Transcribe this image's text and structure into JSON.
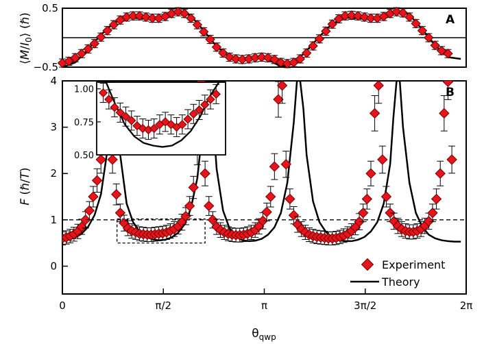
{
  "chart_data": [
    {
      "panel": "A",
      "type": "line",
      "ylabel_parts": [
        "⟨",
        "M",
        "/",
        "I",
        "0",
        "⟩ (ℏ)"
      ],
      "ylim": [
        -0.5,
        0.5
      ],
      "xlim": [
        0,
        6.283
      ],
      "y_ticks": [
        {
          "value": 0.5,
          "label": "0.5"
        },
        {
          "value": -0.5,
          "label": "−0.5"
        }
      ],
      "reference_line_y": 0,
      "series": [
        {
          "kind": "scatter",
          "color": "#e8141b",
          "x": [
            0.0,
            0.1,
            0.2,
            0.3,
            0.4,
            0.5,
            0.6,
            0.7,
            0.8,
            0.9,
            1.0,
            1.1,
            1.2,
            1.3,
            1.4,
            1.5,
            1.6,
            1.7,
            1.8,
            1.9,
            2.0,
            2.1,
            2.2,
            2.3,
            2.4,
            2.5,
            2.6,
            2.7,
            2.8,
            2.9,
            3.0,
            3.1,
            3.2,
            3.3,
            3.4,
            3.5,
            3.6,
            3.7,
            3.8,
            3.9,
            4.0,
            4.1,
            4.2,
            4.3,
            4.4,
            4.5,
            4.6,
            4.7,
            4.8,
            4.9,
            5.0,
            5.1,
            5.2,
            5.3,
            5.4,
            5.5,
            5.6,
            5.7,
            5.8,
            5.9,
            6.0
          ],
          "y": [
            -0.43,
            -0.4,
            -0.34,
            -0.27,
            -0.19,
            -0.1,
            0.01,
            0.12,
            0.22,
            0.3,
            0.35,
            0.37,
            0.37,
            0.35,
            0.33,
            0.33,
            0.36,
            0.41,
            0.44,
            0.41,
            0.33,
            0.22,
            0.1,
            -0.03,
            -0.16,
            -0.26,
            -0.33,
            -0.36,
            -0.37,
            -0.36,
            -0.34,
            -0.33,
            -0.34,
            -0.37,
            -0.42,
            -0.44,
            -0.42,
            -0.36,
            -0.26,
            -0.14,
            -0.02,
            0.11,
            0.23,
            0.32,
            0.37,
            0.38,
            0.37,
            0.35,
            0.33,
            0.33,
            0.36,
            0.41,
            0.44,
            0.42,
            0.35,
            0.24,
            0.12,
            0.0,
            -0.13,
            -0.22,
            -0.27
          ]
        },
        {
          "kind": "line",
          "color": "#000000",
          "x": [
            0.0,
            0.2,
            0.4,
            0.6,
            0.8,
            1.0,
            1.2,
            1.4,
            1.6,
            1.8,
            2.0,
            2.2,
            2.4,
            2.6,
            2.8,
            3.0,
            3.2,
            3.4,
            3.6,
            3.8,
            4.0,
            4.2,
            4.4,
            4.6,
            4.8,
            5.0,
            5.2,
            5.4,
            5.6,
            5.8,
            6.0,
            6.2
          ],
          "y": [
            -0.5,
            -0.42,
            -0.2,
            0.05,
            0.25,
            0.34,
            0.33,
            0.31,
            0.38,
            0.47,
            0.37,
            0.12,
            -0.15,
            -0.33,
            -0.35,
            -0.32,
            -0.37,
            -0.49,
            -0.44,
            -0.22,
            0.02,
            0.24,
            0.34,
            0.33,
            0.31,
            0.37,
            0.47,
            0.39,
            0.14,
            -0.13,
            -0.33,
            -0.36
          ]
        }
      ]
    },
    {
      "panel": "B",
      "type": "scatter",
      "ylabel_parts": [
        "F",
        " (ℏ/",
        "T",
        ")"
      ],
      "xlabel_main": "θ",
      "xlabel_sub": "qwp",
      "ylim": [
        -0.6,
        4
      ],
      "xlim": [
        0,
        6.283
      ],
      "y_ticks": [
        {
          "value": 0,
          "label": "0"
        },
        {
          "value": 1,
          "label": "1"
        },
        {
          "value": 2,
          "label": "2"
        },
        {
          "value": 3,
          "label": "3"
        },
        {
          "value": 4,
          "label": "4"
        }
      ],
      "x_ticks": [
        {
          "value": 0,
          "label": "0"
        },
        {
          "value": 1.5708,
          "label": "π/2"
        },
        {
          "value": 3.1416,
          "label": "π"
        },
        {
          "value": 4.7124,
          "label": "3π/2"
        },
        {
          "value": 6.2832,
          "label": "2π"
        }
      ],
      "reference_line_y": 1,
      "series": [
        {
          "name": "Experiment",
          "kind": "scatter",
          "color": "#e8141b",
          "x": [
            0.0,
            0.06,
            0.12,
            0.18,
            0.24,
            0.3,
            0.36,
            0.42,
            0.48,
            0.54,
            0.6,
            0.66,
            0.72,
            0.78,
            0.84,
            0.9,
            0.96,
            1.02,
            1.08,
            1.14,
            1.2,
            1.26,
            1.32,
            1.38,
            1.44,
            1.5,
            1.56,
            1.62,
            1.68,
            1.74,
            1.8,
            1.86,
            1.92,
            1.98,
            2.04,
            2.1,
            2.16,
            2.22,
            2.28,
            2.34,
            2.4,
            2.46,
            2.52,
            2.58,
            2.64,
            2.7,
            2.76,
            2.82,
            2.88,
            2.94,
            3.0,
            3.06,
            3.12,
            3.18,
            3.24,
            3.3,
            3.36,
            3.42,
            3.48,
            3.54,
            3.6,
            3.66,
            3.72,
            3.78,
            3.84,
            3.9,
            3.96,
            4.02,
            4.08,
            4.14,
            4.2,
            4.26,
            4.32,
            4.38,
            4.44,
            4.5,
            4.56,
            4.62,
            4.68,
            4.74,
            4.8,
            4.86,
            4.92,
            4.98,
            5.04,
            5.1,
            5.16,
            5.22,
            5.28,
            5.34,
            5.4,
            5.46,
            5.52,
            5.58,
            5.64,
            5.7,
            5.76,
            5.82,
            5.88,
            5.94,
            6.0,
            6.06
          ],
          "y": [
            0.6,
            0.62,
            0.65,
            0.69,
            0.75,
            0.85,
            1.0,
            1.2,
            1.5,
            1.85,
            2.3,
            2.9,
            3.6,
            2.3,
            1.55,
            1.15,
            0.93,
            0.82,
            0.76,
            0.73,
            0.7,
            0.69,
            0.68,
            0.68,
            0.69,
            0.7,
            0.71,
            0.73,
            0.76,
            0.8,
            0.86,
            0.95,
            1.08,
            1.3,
            1.7,
            2.5,
            4.0,
            2.0,
            1.3,
            1.0,
            0.85,
            0.78,
            0.73,
            0.7,
            0.68,
            0.67,
            0.67,
            0.68,
            0.7,
            0.73,
            0.78,
            0.86,
            0.98,
            1.17,
            1.5,
            2.15,
            3.6,
            3.9,
            2.2,
            1.45,
            1.1,
            0.9,
            0.8,
            0.73,
            0.68,
            0.65,
            0.63,
            0.62,
            0.61,
            0.6,
            0.6,
            0.61,
            0.63,
            0.66,
            0.7,
            0.76,
            0.84,
            0.96,
            1.15,
            1.45,
            2.0,
            3.3,
            3.9,
            2.3,
            1.5,
            1.15,
            0.97,
            0.87,
            0.8,
            0.76,
            0.74,
            0.74,
            0.76,
            0.8,
            0.87,
            0.97,
            1.15,
            1.45,
            2.0,
            3.3,
            4.0,
            2.3
          ]
        },
        {
          "name": "Theory",
          "kind": "line",
          "color": "#000000",
          "x": [
            0.0,
            0.1,
            0.2,
            0.3,
            0.4,
            0.5,
            0.6,
            0.7,
            0.75,
            0.8,
            0.85,
            0.9,
            1.0,
            1.1,
            1.2,
            1.3,
            1.4,
            1.5,
            1.6,
            1.7,
            1.8,
            1.9,
            2.0,
            2.1,
            2.2,
            2.25,
            2.3,
            2.35,
            2.4,
            2.5,
            2.6,
            2.7,
            2.8,
            2.9,
            3.0,
            3.1,
            3.2,
            3.3,
            3.4,
            3.5,
            3.6,
            3.65,
            3.7,
            3.75,
            3.8,
            3.9,
            4.0,
            4.1,
            4.2,
            4.3,
            4.4,
            4.5,
            4.6,
            4.7,
            4.8,
            4.9,
            5.0,
            5.1,
            5.15,
            5.2,
            5.25,
            5.3,
            5.4,
            5.5,
            5.6,
            5.7,
            5.8,
            5.9,
            6.0,
            6.1,
            6.2
          ],
          "y": [
            0.55,
            0.57,
            0.62,
            0.7,
            0.85,
            1.1,
            1.55,
            2.5,
            3.5,
            4.0,
            3.5,
            2.4,
            1.35,
            0.95,
            0.75,
            0.64,
            0.58,
            0.56,
            0.57,
            0.62,
            0.72,
            0.9,
            1.25,
            1.9,
            3.2,
            4.0,
            4.0,
            3.1,
            2.1,
            1.2,
            0.82,
            0.64,
            0.56,
            0.54,
            0.55,
            0.59,
            0.68,
            0.84,
            1.15,
            1.8,
            3.1,
            4.0,
            4.0,
            3.4,
            2.4,
            1.4,
            0.95,
            0.74,
            0.62,
            0.56,
            0.54,
            0.54,
            0.57,
            0.63,
            0.75,
            0.95,
            1.35,
            2.2,
            3.2,
            4.0,
            4.0,
            3.0,
            1.8,
            1.15,
            0.85,
            0.68,
            0.6,
            0.56,
            0.54,
            0.53,
            0.53
          ]
        }
      ],
      "zoom_box": {
        "x": [
          0.85,
          2.22
        ],
        "y": [
          0.5,
          1.02
        ]
      },
      "inset": {
        "xlim": [
          0.85,
          2.22
        ],
        "ylim": [
          0.5,
          1.05
        ],
        "y_ticks": [
          {
            "value": 1.0,
            "label": "1.00"
          },
          {
            "value": 0.75,
            "label": "0.75"
          },
          {
            "value": 0.5,
            "label": "0.50"
          }
        ],
        "points_x": [
          0.92,
          0.98,
          1.04,
          1.1,
          1.16,
          1.22,
          1.28,
          1.34,
          1.4,
          1.46,
          1.52,
          1.58,
          1.64,
          1.7,
          1.76,
          1.82,
          1.88,
          1.94,
          2.0,
          2.06,
          2.12
        ],
        "points_y": [
          0.97,
          0.92,
          0.86,
          0.82,
          0.79,
          0.76,
          0.72,
          0.7,
          0.69,
          0.7,
          0.73,
          0.75,
          0.73,
          0.71,
          0.73,
          0.77,
          0.81,
          0.84,
          0.88,
          0.92,
          0.96
        ],
        "curve_x": [
          0.95,
          1.05,
          1.15,
          1.25,
          1.35,
          1.45,
          1.55,
          1.65,
          1.75,
          1.85,
          1.95,
          2.05,
          2.15
        ],
        "curve_y": [
          1.05,
          0.88,
          0.73,
          0.64,
          0.59,
          0.57,
          0.56,
          0.57,
          0.61,
          0.68,
          0.79,
          0.94,
          1.05
        ]
      }
    }
  ],
  "legend": {
    "experiment": "Experiment",
    "theory": "Theory"
  },
  "colors": {
    "marker": "#e8141b",
    "theory": "#000000"
  }
}
